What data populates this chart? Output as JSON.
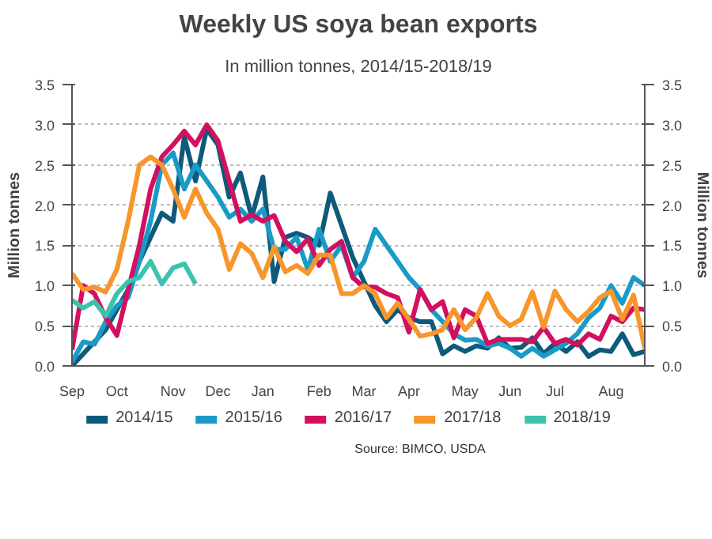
{
  "chart_data": {
    "type": "line",
    "title": "Weekly US soya bean exports",
    "subtitle": "In million tonnes, 2014/15-2018/19",
    "ylabel": "Million tonnes",
    "y2label": "Million tonnes",
    "categories": [
      "Sep",
      null,
      null,
      null,
      "Oct",
      null,
      null,
      null,
      null,
      "Nov",
      null,
      null,
      null,
      "Dec",
      null,
      null,
      null,
      "Jan",
      null,
      null,
      null,
      null,
      "Feb",
      null,
      null,
      null,
      "Mar",
      null,
      null,
      null,
      "Apr",
      null,
      null,
      null,
      null,
      "May",
      null,
      null,
      null,
      "Jun",
      null,
      null,
      null,
      "Jul",
      null,
      null,
      null,
      null,
      "Aug",
      null,
      null,
      null
    ],
    "ylim": [
      0,
      3.5
    ],
    "yticks": [
      {
        "value": 0,
        "label": "0.0"
      },
      {
        "value": 0.5,
        "label": "0.5"
      },
      {
        "value": 1,
        "label": "1.0"
      },
      {
        "value": 1.5,
        "label": "1.5"
      },
      {
        "value": 2,
        "label": "2.0"
      },
      {
        "value": 2.5,
        "label": "2.5"
      },
      {
        "value": 3,
        "label": "3.0"
      },
      {
        "value": 3.5,
        "label": "3.5"
      }
    ],
    "y2lim": [
      0,
      3.5
    ],
    "y2ticks": [
      {
        "value": 0,
        "label": "0.0"
      },
      {
        "value": 0.5,
        "label": "0.5"
      },
      {
        "value": 1,
        "label": "1.0"
      },
      {
        "value": 1.5,
        "label": "1.5"
      },
      {
        "value": 2,
        "label": "2.0"
      },
      {
        "value": 2.5,
        "label": "2.5"
      },
      {
        "value": 3,
        "label": "3.0"
      },
      {
        "value": 3.5,
        "label": "3.5"
      }
    ],
    "grid": "y",
    "legend": "bottom",
    "marker": "none",
    "line_style": "solid",
    "annotations": [
      "Source: BIMCO, USDA"
    ],
    "series": [
      {
        "name": "2014/15",
        "color": "#0d5a7a",
        "values": [
          0,
          0.15,
          0.3,
          0.45,
          0.7,
          0.95,
          1.3,
          1.6,
          1.9,
          1.8,
          2.85,
          2.3,
          2.95,
          2.75,
          2.1,
          2.4,
          1.85,
          2.35,
          1.05,
          1.6,
          1.65,
          1.6,
          1.5,
          2.15,
          1.75,
          1.35,
          1.05,
          0.75,
          0.55,
          0.7,
          0.6,
          0.55,
          0.55,
          0.15,
          0.25,
          0.18,
          0.25,
          0.22,
          0.35,
          0.22,
          0.23,
          0.35,
          0.15,
          0.28,
          0.18,
          0.3,
          0.12,
          0.2,
          0.18,
          0.4,
          0.14,
          0.18
        ]
      },
      {
        "name": "2015/16",
        "color": "#1a9bc7",
        "values": [
          0.05,
          0.3,
          0.27,
          0.55,
          0.75,
          0.85,
          1.3,
          1.8,
          2.5,
          2.65,
          2.2,
          2.5,
          2.3,
          2.1,
          1.85,
          1.95,
          1.8,
          1.95,
          1.45,
          1.45,
          1.6,
          1.2,
          1.7,
          1.3,
          1.5,
          1.1,
          1.3,
          1.7,
          1.5,
          1.3,
          1.1,
          0.95,
          0.7,
          0.55,
          0.4,
          0.32,
          0.33,
          0.25,
          0.28,
          0.22,
          0.12,
          0.22,
          0.12,
          0.2,
          0.28,
          0.4,
          0.6,
          0.72,
          1.0,
          0.78,
          1.1,
          1.0
        ]
      },
      {
        "name": "2016/17",
        "color": "#d3105f",
        "values": [
          0.2,
          1.0,
          0.9,
          0.6,
          0.38,
          0.95,
          1.5,
          2.2,
          2.6,
          2.75,
          2.92,
          2.75,
          3.0,
          2.8,
          2.3,
          1.8,
          1.88,
          1.8,
          1.87,
          1.55,
          1.42,
          1.58,
          1.25,
          1.45,
          1.55,
          1.1,
          0.98,
          0.98,
          0.9,
          0.85,
          0.42,
          0.95,
          0.7,
          0.8,
          0.35,
          0.7,
          0.62,
          0.28,
          0.33,
          0.33,
          0.33,
          0.3,
          0.48,
          0.28,
          0.33,
          0.26,
          0.4,
          0.33,
          0.62,
          0.55,
          0.72,
          0.7
        ]
      },
      {
        "name": "2017/18",
        "color": "#f7962b",
        "values": [
          1.15,
          0.95,
          0.98,
          0.92,
          1.2,
          1.8,
          2.5,
          2.6,
          2.5,
          2.2,
          1.85,
          2.2,
          1.9,
          1.7,
          1.2,
          1.52,
          1.4,
          1.1,
          1.48,
          1.17,
          1.25,
          1.15,
          1.38,
          1.38,
          0.9,
          0.9,
          1.0,
          0.9,
          0.6,
          0.78,
          0.58,
          0.37,
          0.4,
          0.45,
          0.7,
          0.45,
          0.6,
          0.9,
          0.62,
          0.5,
          0.58,
          0.92,
          0.48,
          0.93,
          0.7,
          0.55,
          0.68,
          0.85,
          0.93,
          0.58,
          0.88,
          0.22
        ]
      },
      {
        "name": "2018/19",
        "color": "#3cc3ad",
        "values": [
          0.82,
          0.72,
          0.8,
          0.62,
          0.9,
          1.05,
          1.1,
          1.3,
          1.02,
          1.22,
          1.27,
          1.02,
          null,
          null,
          null,
          null,
          null,
          null,
          null,
          null,
          null,
          null,
          null,
          null,
          null,
          null,
          null,
          null,
          null,
          null,
          null,
          null,
          null,
          null,
          null,
          null,
          null,
          null,
          null,
          null,
          null,
          null,
          null,
          null,
          null,
          null,
          null,
          null,
          null,
          null,
          null,
          null
        ]
      }
    ]
  }
}
